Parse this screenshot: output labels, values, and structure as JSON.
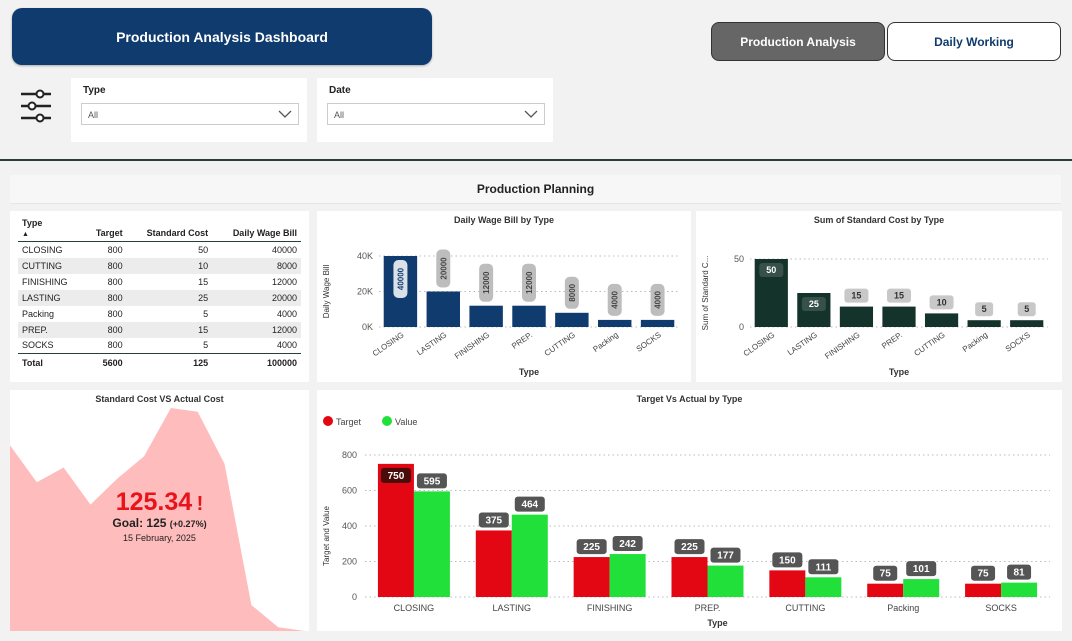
{
  "header": {
    "title": "Production Analysis Dashboard",
    "nav": [
      {
        "label": "Production Analysis",
        "active": true
      },
      {
        "label": "Daily Working",
        "active": false
      }
    ]
  },
  "filters": {
    "type": {
      "label": "Type",
      "value": "All"
    },
    "date": {
      "label": "Date",
      "value": "All"
    }
  },
  "section_title": "Production Planning",
  "table": {
    "headers": [
      "Type",
      "Target",
      "Standard Cost",
      "Daily Wage Bill"
    ],
    "rows": [
      [
        "CLOSING",
        "800",
        "50",
        "40000"
      ],
      [
        "CUTTING",
        "800",
        "10",
        "8000"
      ],
      [
        "FINISHING",
        "800",
        "15",
        "12000"
      ],
      [
        "LASTING",
        "800",
        "25",
        "20000"
      ],
      [
        "Packing",
        "800",
        "5",
        "4000"
      ],
      [
        "PREP.",
        "800",
        "15",
        "12000"
      ],
      [
        "SOCKS",
        "800",
        "5",
        "4000"
      ]
    ],
    "total": [
      "Total",
      "5600",
      "125",
      "100000"
    ]
  },
  "kpi": {
    "title": "Standard Cost VS Actual Cost",
    "value": "125.34",
    "alert": "!",
    "goal_label": "Goal: 125",
    "goal_delta": "(+0.27%)",
    "date": "15 February, 2025",
    "fill_color": "#ffbcbc",
    "value_color": "#e8131b"
  },
  "chart_data": [
    {
      "type": "bar",
      "title": "Daily Wage Bill by Type",
      "xlabel": "Type",
      "ylabel": "Daily Wage Bill",
      "categories": [
        "CLOSING",
        "LASTING",
        "FINISHING",
        "PREP.",
        "CUTTING",
        "Packing",
        "SOCKS"
      ],
      "values": [
        40000,
        20000,
        12000,
        12000,
        8000,
        4000,
        4000
      ],
      "data_labels": [
        "40000",
        "20000",
        "12000",
        "12000",
        "8000",
        "4000",
        "4000"
      ],
      "yticks": [
        "0K",
        "20K",
        "40K"
      ],
      "ylim": [
        0,
        40000
      ],
      "color": "#0f3b6e",
      "grid": true
    },
    {
      "type": "bar",
      "title": "Sum of Standard Cost by Type",
      "xlabel": "Type",
      "ylabel": "Sum of Standard C...",
      "categories": [
        "CLOSING",
        "LASTING",
        "FINISHING",
        "PREP.",
        "CUTTING",
        "Packing",
        "SOCKS"
      ],
      "values": [
        50,
        25,
        15,
        15,
        10,
        5,
        5
      ],
      "data_labels": [
        "50",
        "25",
        "15",
        "15",
        "10",
        "5",
        "5"
      ],
      "yticks": [
        "0",
        "50"
      ],
      "ylim": [
        0,
        50
      ],
      "color": "#14332b",
      "grid": true
    },
    {
      "type": "bar",
      "title": "Target Vs Actual by Type",
      "xlabel": "Type",
      "ylabel": "Target and Value",
      "categories": [
        "CLOSING",
        "LASTING",
        "FINISHING",
        "PREP.",
        "CUTTING",
        "Packing",
        "SOCKS"
      ],
      "series": [
        {
          "name": "Target",
          "color": "#e30613",
          "values": [
            750,
            375,
            225,
            225,
            150,
            75,
            75
          ],
          "labels": [
            "750",
            "375",
            "225",
            "225",
            "150",
            "75",
            "75"
          ]
        },
        {
          "name": "Value",
          "color": "#22e03a",
          "values": [
            595,
            464,
            242,
            177,
            111,
            101,
            81
          ],
          "labels": [
            "595",
            "464",
            "242",
            "177",
            "111",
            "101",
            "81"
          ]
        }
      ],
      "yticks": [
        "0",
        "200",
        "400",
        "600",
        "800"
      ],
      "ylim": [
        0,
        800
      ],
      "legend": "top-left",
      "grid": true
    },
    {
      "type": "area",
      "title": "Standard Cost VS Actual Cost",
      "values": [
        50,
        40,
        44,
        34,
        41,
        47,
        60,
        59,
        45,
        7,
        1,
        0
      ]
    }
  ]
}
